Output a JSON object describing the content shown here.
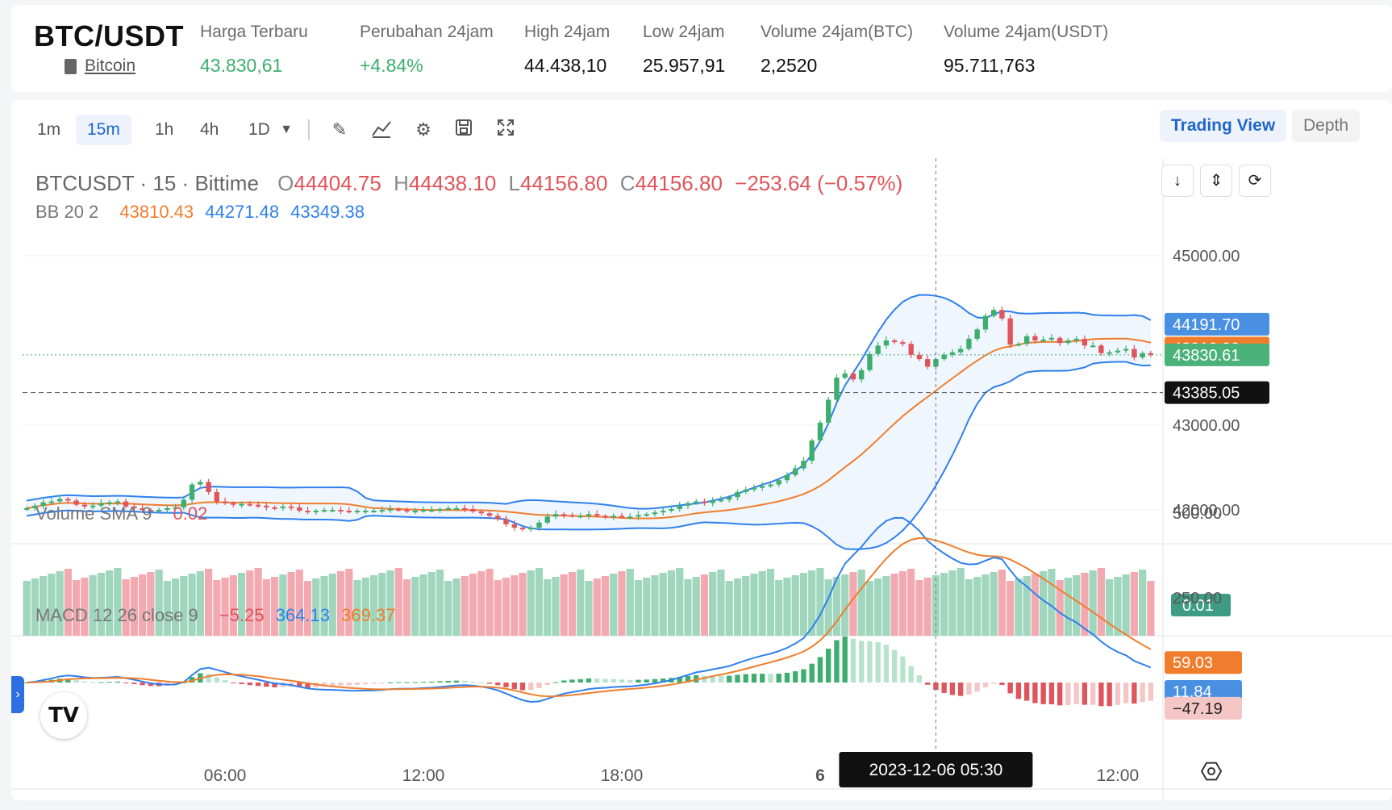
{
  "header": {
    "pair": "BTC/USDT",
    "coin_link": "Bitcoin",
    "stats": [
      {
        "label": "Harga Terbaru",
        "value": "43.830,61",
        "up": true
      },
      {
        "label": "Perubahan 24jam",
        "value": "+4.84%",
        "up": true
      },
      {
        "label": "High 24jam",
        "value": "44.438,10",
        "up": false
      },
      {
        "label": "Low 24jam",
        "value": "25.957,91",
        "up": false
      },
      {
        "label": "Volume 24jam(BTC)",
        "value": "2,2520",
        "up": false
      },
      {
        "label": "Volume 24jam(USDT)",
        "value": "95.711,763",
        "up": false
      }
    ]
  },
  "toolbar": {
    "timeframes": [
      "1m",
      "15m",
      "1h",
      "4h",
      "1D"
    ],
    "active_timeframe": "15m",
    "icons": [
      "chevron-down-icon",
      "pencil-icon",
      "indicator-icon",
      "gear-icon",
      "save-icon",
      "fullscreen-icon"
    ],
    "trading_view": "Trading View",
    "depth": "Depth"
  },
  "legend": {
    "symbol": "BTCUSDT · 15 · Bittime",
    "o_label": "O",
    "o": "44404.75",
    "h_label": "H",
    "h": "44438.10",
    "l_label": "L",
    "l": "44156.80",
    "c_label": "C",
    "c": "44156.80",
    "change": "−253.64 (−0.57%)",
    "bb_title": "BB 20 2",
    "bb_basis": "43810.43",
    "bb_upper": "44271.48",
    "bb_lower": "43349.38",
    "vol_title": "Volume SMA 9",
    "vol_value": "0.02",
    "macd_title": "MACD 12 26 close 9",
    "macd_hist": "−5.25",
    "macd_line": "364.13",
    "macd_signal": "369.37"
  },
  "colors": {
    "up": "#3dae6e",
    "down": "#e0545b",
    "bb_upper_lower": "#2f80ed",
    "bb_basis": "#f07d2d",
    "accent": "#1f67c9"
  },
  "price_axis": {
    "ticks": [
      "45000.00",
      "43000.00",
      "42000.00"
    ],
    "badges": [
      {
        "text": "44191.70",
        "color": "#4a90e2"
      },
      {
        "text": "43910.99",
        "color": "#f07d2d"
      },
      {
        "text": "43830.61",
        "color": "#4bb27a"
      },
      {
        "text": "43385.05",
        "color": "#111111"
      }
    ]
  },
  "volume_axis": {
    "badge": "0.01"
  },
  "macd_axis": {
    "ticks": [
      "500.00",
      "250.00"
    ],
    "badges": [
      {
        "text": "59.03",
        "color": "#f07d2d"
      },
      {
        "text": "11.84",
        "color": "#4a90e2"
      },
      {
        "text": "−47.19",
        "color": "#f4c6c6"
      }
    ]
  },
  "time_axis": {
    "labels": [
      "06:00",
      "12:00",
      "18:00",
      "6",
      "12:00"
    ],
    "crosshair_label": "2023-12-06   05:30"
  },
  "chart_data": {
    "type": "candlestick",
    "title": "BTCUSDT · 15 · Bittime",
    "yrange": [
      41600,
      45200
    ],
    "closes": [
      42020,
      42050,
      42090,
      42100,
      42130,
      42110,
      42060,
      42040,
      42050,
      42080,
      42090,
      42100,
      42040,
      42020,
      42000,
      41990,
      42000,
      42020,
      42030,
      42120,
      42300,
      42330,
      42210,
      42100,
      42080,
      42060,
      42070,
      42060,
      42050,
      42030,
      42020,
      42040,
      42030,
      41990,
      41980,
      41990,
      42000,
      42000,
      41990,
      41980,
      41990,
      41990,
      41990,
      42000,
      42010,
      42000,
      41990,
      41990,
      42000,
      42000,
      42010,
      42020,
      42020,
      42010,
      41980,
      41960,
      41930,
      41890,
      41830,
      41790,
      41770,
      41790,
      41850,
      41920,
      41950,
      41940,
      41930,
      41930,
      41950,
      41930,
      41920,
      41930,
      41920,
      41920,
      41940,
      41950,
      41970,
      41990,
      42010,
      42050,
      42080,
      42100,
      42080,
      42110,
      42120,
      42150,
      42210,
      42240,
      42260,
      42280,
      42300,
      42350,
      42410,
      42490,
      42580,
      42820,
      43030,
      43300,
      43560,
      43610,
      43540,
      43650,
      43840,
      43940,
      44000,
      43980,
      43960,
      43830,
      43780,
      43690,
      43780,
      43830,
      43860,
      43900,
      44020,
      44130,
      44290,
      44360,
      44260,
      43950,
      43960,
      44050,
      44000,
      44010,
      44030,
      43970,
      44000,
      44020,
      43940,
      43940,
      43850,
      43860,
      43880,
      43900,
      43800,
      43850,
      43830
    ]
  }
}
